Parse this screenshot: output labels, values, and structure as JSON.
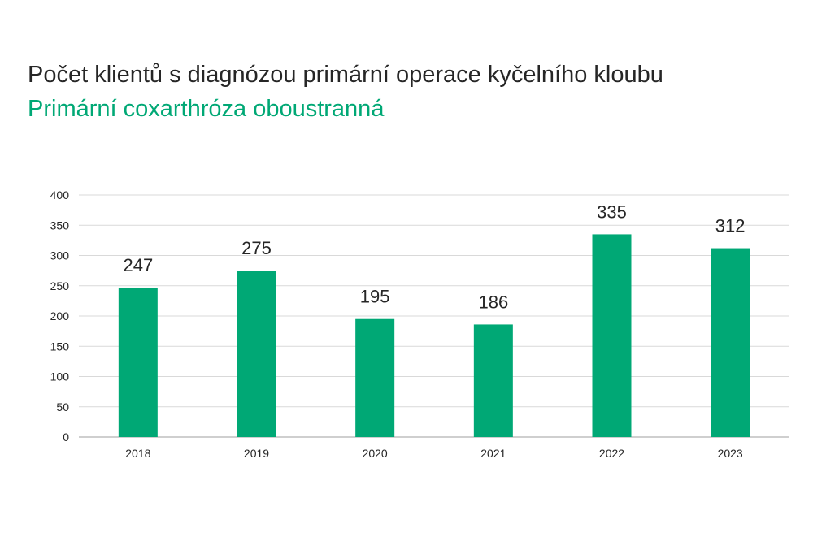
{
  "header": {
    "title": "Počet klientů s diagnózou primární operace kyčelního kloubu",
    "subtitle": "Primární coxarthróza oboustranná"
  },
  "colors": {
    "bar": "#00A875",
    "subtitle": "#00A875",
    "gridline": "#D9D9D9",
    "axis": "#BFBFBF",
    "text": "#262626"
  },
  "chart_data": {
    "type": "bar",
    "title": "",
    "xlabel": "",
    "ylabel": "",
    "categories": [
      "2018",
      "2019",
      "2020",
      "2021",
      "2022",
      "2023"
    ],
    "values": [
      247,
      275,
      195,
      186,
      335,
      312
    ],
    "data_labels": [
      "247",
      "275",
      "195",
      "186",
      "335",
      "312"
    ],
    "ylim": [
      0,
      400
    ],
    "yticks": [
      "0",
      "50",
      "100",
      "150",
      "200",
      "250",
      "300",
      "350",
      "400"
    ],
    "grid": true,
    "legend": "none"
  }
}
